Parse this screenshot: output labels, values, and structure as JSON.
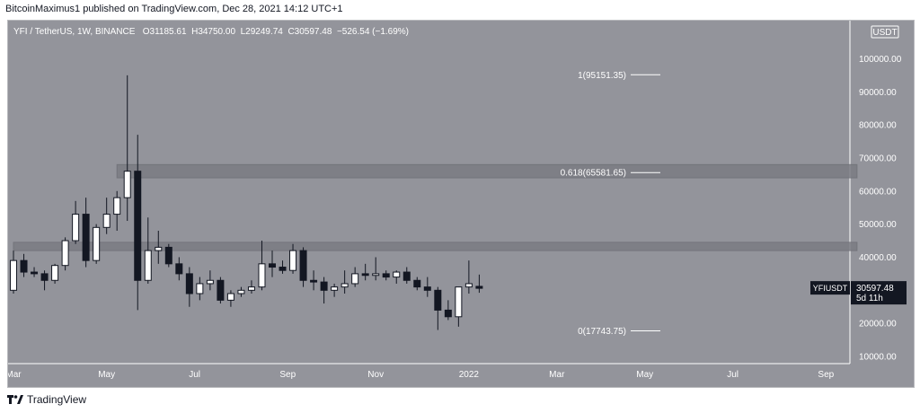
{
  "header": {
    "publish_line": "BitcoinMaximus1 published on TradingView.com, Dec 28, 2021 14:12 UTC+1"
  },
  "legend": {
    "symbol": "YFI / TetherUS, 1W, BINANCE",
    "o_label": "O",
    "o_value": "31185.61",
    "h_label": "H",
    "h_value": "34750.00",
    "l_label": "L",
    "l_value": "29249.74",
    "c_label": "C",
    "c_value": "30597.48",
    "change": "−526.54 (−1.69%)"
  },
  "currency": "USDT",
  "price_tag": {
    "symbol": "YFIUSDT",
    "price": "30597.48",
    "countdown": "5d 11h"
  },
  "footer": {
    "brand": "TradingView"
  },
  "colors": {
    "background": "#93949b",
    "bull": "#ffffff",
    "bear": "#131722",
    "zone": "#7b7c83",
    "tag_bg": "#131722"
  },
  "chart_data": {
    "type": "candlestick",
    "ylim": [
      10000,
      105000
    ],
    "y_ticks": [
      10000,
      20000,
      30000,
      40000,
      50000,
      60000,
      70000,
      80000,
      90000,
      100000
    ],
    "y_tick_labels": [
      "10000.00",
      "20000.00",
      "30000.00",
      "40000.00",
      "50000.00",
      "60000.00",
      "70000.00",
      "80000.00",
      "90000.00",
      "100000.00"
    ],
    "x_ticks": [
      {
        "label": "Mar",
        "week": 0
      },
      {
        "label": "May",
        "week": 9
      },
      {
        "label": "Jul",
        "week": 17.5
      },
      {
        "label": "Sep",
        "week": 26.5
      },
      {
        "label": "Nov",
        "week": 35
      },
      {
        "label": "2022",
        "week": 44
      },
      {
        "label": "Mar",
        "week": 52.5
      },
      {
        "label": "May",
        "week": 61
      },
      {
        "label": "Jul",
        "week": 69.5
      },
      {
        "label": "Sep",
        "week": 78.5
      }
    ],
    "x_range_weeks": [
      0,
      85.5
    ],
    "candles": [
      {
        "o": 30000,
        "h": 42000,
        "l": 29000,
        "c": 39000
      },
      {
        "o": 39000,
        "h": 41000,
        "l": 34000,
        "c": 35500
      },
      {
        "o": 35500,
        "h": 37000,
        "l": 34000,
        "c": 35000
      },
      {
        "o": 35000,
        "h": 36000,
        "l": 30000,
        "c": 33000
      },
      {
        "o": 33000,
        "h": 38000,
        "l": 32000,
        "c": 37500
      },
      {
        "o": 37500,
        "h": 46000,
        "l": 36000,
        "c": 45000
      },
      {
        "o": 45000,
        "h": 57000,
        "l": 44000,
        "c": 53000
      },
      {
        "o": 53000,
        "h": 58000,
        "l": 37000,
        "c": 39000
      },
      {
        "o": 39000,
        "h": 50000,
        "l": 38000,
        "c": 49000
      },
      {
        "o": 49000,
        "h": 58000,
        "l": 47000,
        "c": 53000
      },
      {
        "o": 53000,
        "h": 60000,
        "l": 48000,
        "c": 58000
      },
      {
        "o": 58000,
        "h": 95000,
        "l": 51000,
        "c": 66000
      },
      {
        "o": 66000,
        "h": 77000,
        "l": 24000,
        "c": 33000
      },
      {
        "o": 33000,
        "h": 52000,
        "l": 32000,
        "c": 42000
      },
      {
        "o": 42000,
        "h": 48000,
        "l": 38000,
        "c": 43000
      },
      {
        "o": 43000,
        "h": 44000,
        "l": 37000,
        "c": 38000
      },
      {
        "o": 38000,
        "h": 40000,
        "l": 33000,
        "c": 35000
      },
      {
        "o": 35000,
        "h": 37000,
        "l": 25000,
        "c": 29000
      },
      {
        "o": 29000,
        "h": 34000,
        "l": 27000,
        "c": 32000
      },
      {
        "o": 32000,
        "h": 36000,
        "l": 30000,
        "c": 33000
      },
      {
        "o": 33000,
        "h": 34000,
        "l": 26000,
        "c": 27000
      },
      {
        "o": 27000,
        "h": 30000,
        "l": 25000,
        "c": 29000
      },
      {
        "o": 29000,
        "h": 31000,
        "l": 28000,
        "c": 30000
      },
      {
        "o": 30000,
        "h": 33000,
        "l": 29000,
        "c": 31000
      },
      {
        "o": 31000,
        "h": 45000,
        "l": 30000,
        "c": 38000
      },
      {
        "o": 38000,
        "h": 42000,
        "l": 34000,
        "c": 37000
      },
      {
        "o": 37000,
        "h": 39000,
        "l": 35000,
        "c": 36000
      },
      {
        "o": 36000,
        "h": 44000,
        "l": 35000,
        "c": 42000
      },
      {
        "o": 42000,
        "h": 43000,
        "l": 31000,
        "c": 33000
      },
      {
        "o": 33000,
        "h": 36000,
        "l": 30000,
        "c": 32500
      },
      {
        "o": 32500,
        "h": 34000,
        "l": 26000,
        "c": 30000
      },
      {
        "o": 30000,
        "h": 32000,
        "l": 28000,
        "c": 31000
      },
      {
        "o": 31000,
        "h": 36000,
        "l": 29000,
        "c": 32000
      },
      {
        "o": 32000,
        "h": 37000,
        "l": 31000,
        "c": 35000
      },
      {
        "o": 35000,
        "h": 38000,
        "l": 33000,
        "c": 34500
      },
      {
        "o": 34500,
        "h": 40000,
        "l": 33000,
        "c": 35000
      },
      {
        "o": 35000,
        "h": 36000,
        "l": 33000,
        "c": 34000
      },
      {
        "o": 34000,
        "h": 36000,
        "l": 32000,
        "c": 35500
      },
      {
        "o": 35500,
        "h": 37000,
        "l": 32000,
        "c": 33000
      },
      {
        "o": 33000,
        "h": 34000,
        "l": 30000,
        "c": 31000
      },
      {
        "o": 31000,
        "h": 34000,
        "l": 28000,
        "c": 30000
      },
      {
        "o": 30000,
        "h": 31000,
        "l": 18000,
        "c": 24000
      },
      {
        "o": 24000,
        "h": 27000,
        "l": 21000,
        "c": 22000
      },
      {
        "o": 22000,
        "h": 31000,
        "l": 19000,
        "c": 31000
      },
      {
        "o": 31000,
        "h": 39000,
        "l": 29000,
        "c": 32000
      },
      {
        "o": 31185.61,
        "h": 34750,
        "l": 29249.74,
        "c": 30597.48
      }
    ],
    "zones": [
      {
        "y_low": 42000,
        "y_high": 44500,
        "w_start": 0,
        "w_end": 81.5
      },
      {
        "y_low": 64000,
        "y_high": 68000,
        "w_start": 10,
        "w_end": 81.5
      }
    ],
    "fib_levels": [
      {
        "label": "1(95151.35)",
        "value": 95151.35
      },
      {
        "label": "0.618(65581.65)",
        "value": 65581.65
      },
      {
        "label": "0(17743.75)",
        "value": 17743.75
      }
    ],
    "last_price": 30597.48
  }
}
